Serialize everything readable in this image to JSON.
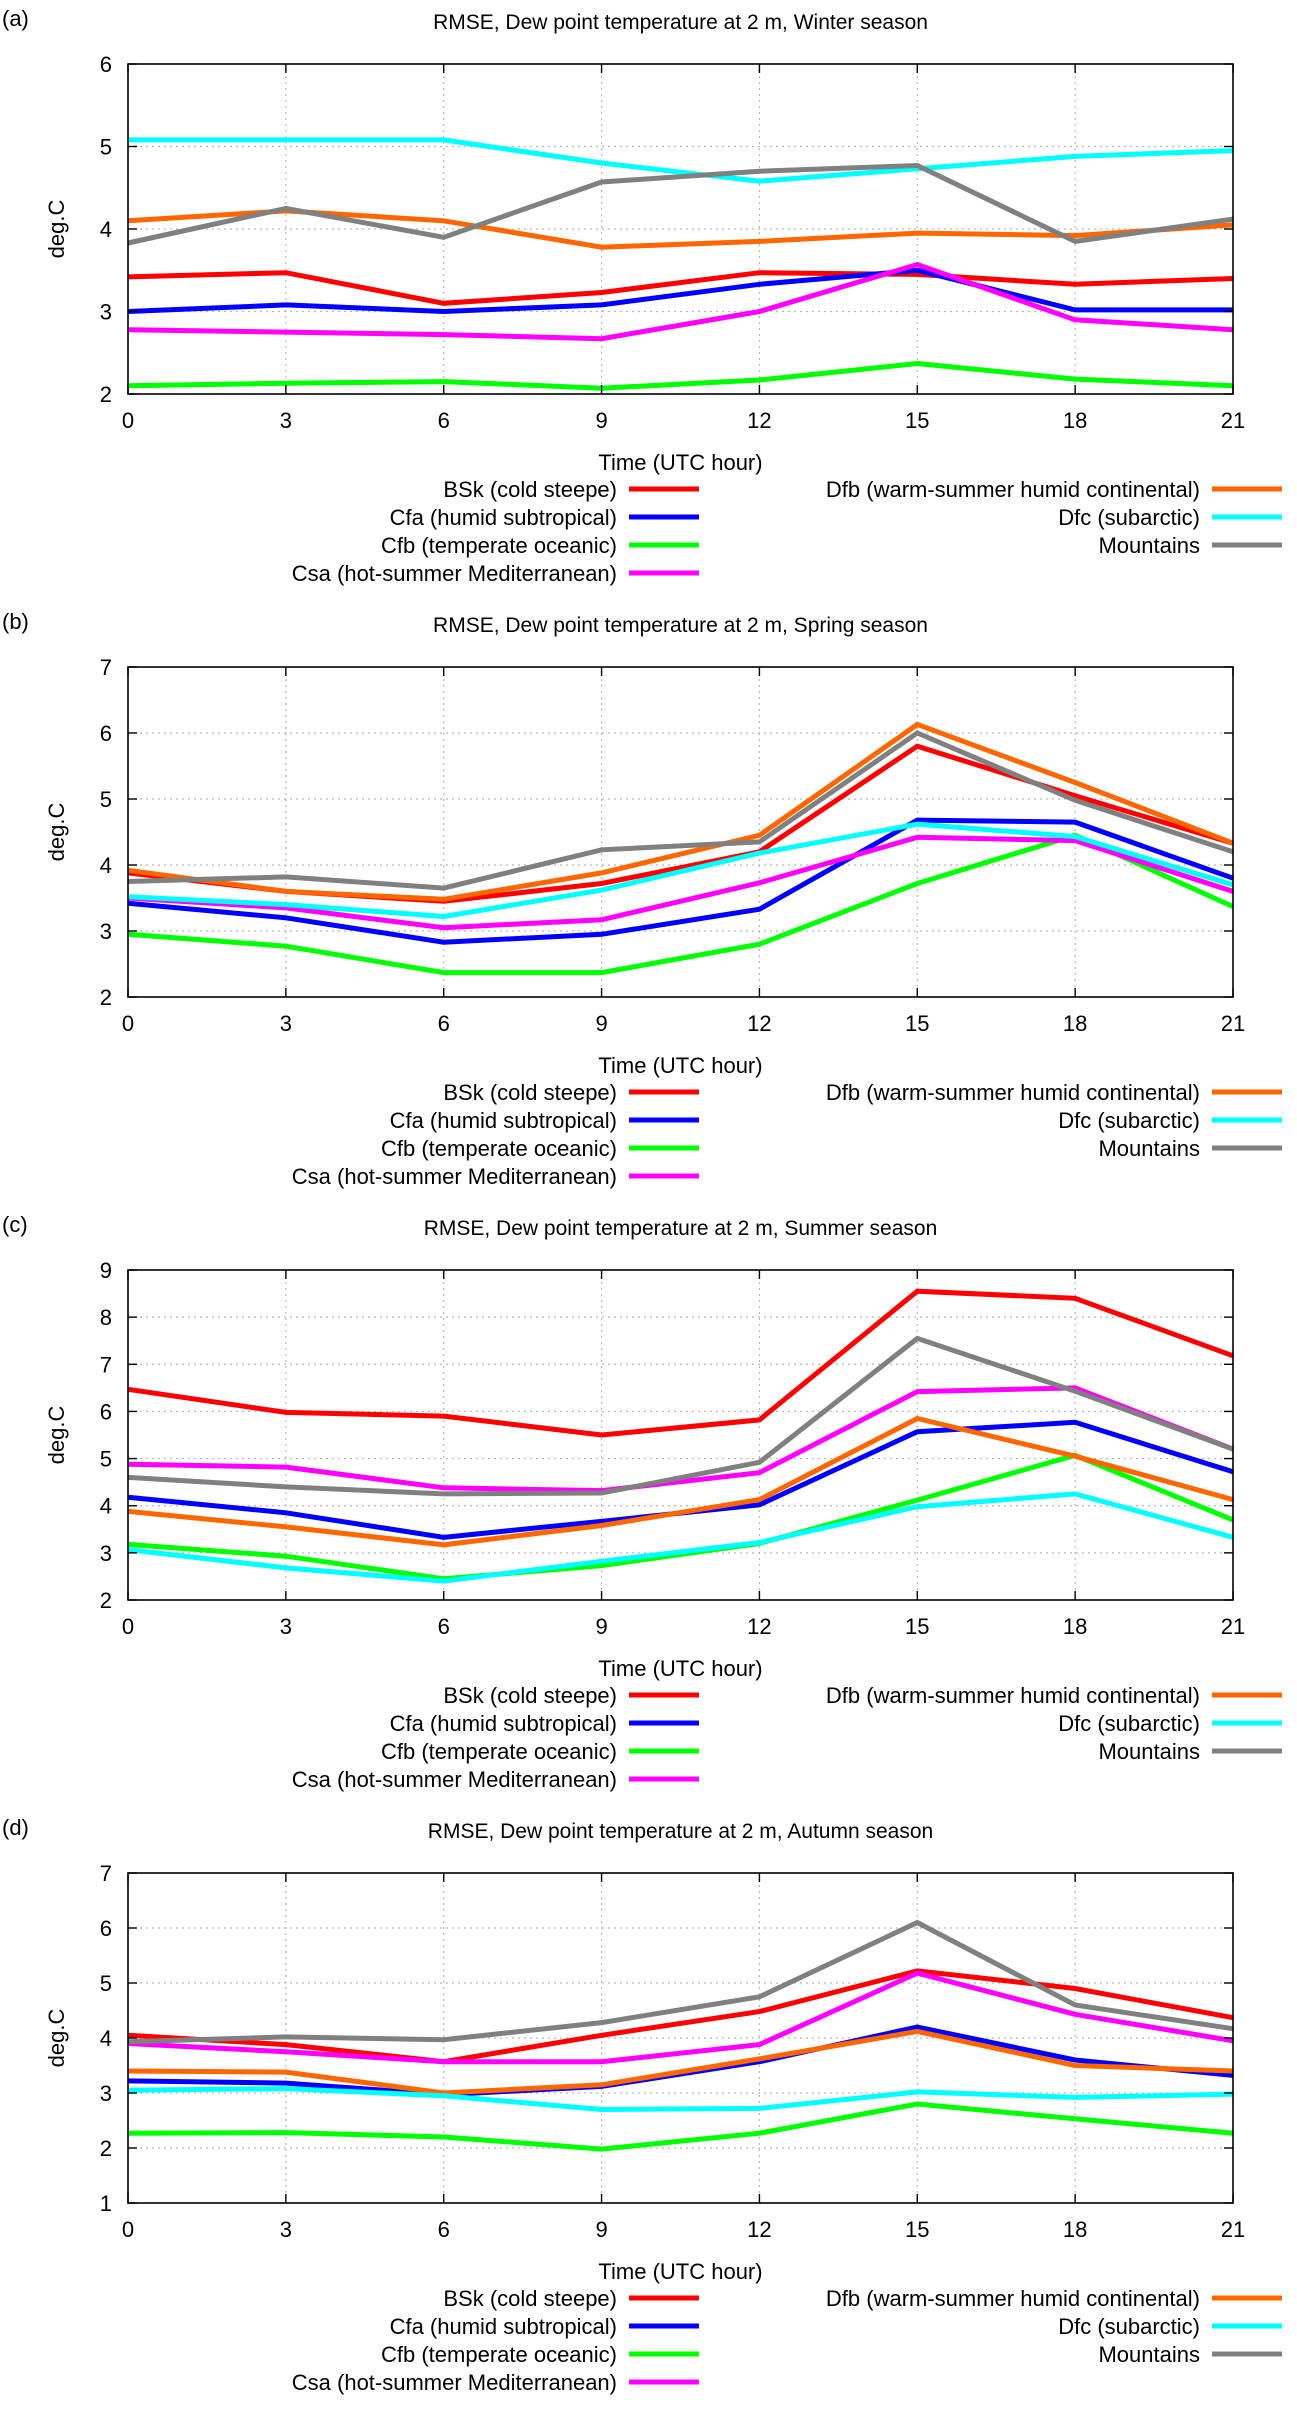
{
  "legend": {
    "left": [
      {
        "label": "BSk (cold steepe)",
        "color": "#ff0000"
      },
      {
        "label": "Cfa (humid subtropical)",
        "color": "#0000ff"
      },
      {
        "label": "Cfb (temperate oceanic)",
        "color": "#00ff00"
      },
      {
        "label": "Csa (hot-summer Mediterranean)",
        "color": "#ff00ff"
      }
    ],
    "right": [
      {
        "label": "Dfb (warm-summer humid continental)",
        "color": "#ff6600"
      },
      {
        "label": "Dfc (subarctic)",
        "color": "#00ffff"
      },
      {
        "label": "Mountains",
        "color": "#808080"
      }
    ]
  },
  "chart_data": [
    {
      "panel_label": "(a)",
      "type": "line",
      "title": "RMSE, Dew point temperature at 2 m, Winter season",
      "xlabel": "Time (UTC hour)",
      "ylabel": "deg.C",
      "x": [
        0,
        3,
        6,
        9,
        12,
        15,
        18,
        21
      ],
      "xlim": [
        0,
        21
      ],
      "ylim": [
        2,
        6
      ],
      "yticks": [
        2,
        3,
        4,
        5,
        6
      ],
      "grid": true,
      "series": [
        {
          "name": "BSk (cold steepe)",
          "color": "#ff0000",
          "values": [
            3.42,
            3.47,
            3.1,
            3.23,
            3.47,
            3.45,
            3.33,
            3.4
          ]
        },
        {
          "name": "Cfa (humid subtropical)",
          "color": "#0000ff",
          "values": [
            3.0,
            3.08,
            3.0,
            3.08,
            3.33,
            3.5,
            3.02,
            3.02
          ]
        },
        {
          "name": "Cfb (temperate oceanic)",
          "color": "#00ff00",
          "values": [
            2.1,
            2.13,
            2.15,
            2.07,
            2.17,
            2.37,
            2.18,
            2.1
          ]
        },
        {
          "name": "Csa (hot-summer Mediterranean)",
          "color": "#ff00ff",
          "values": [
            2.78,
            2.75,
            2.72,
            2.67,
            3.0,
            3.57,
            2.9,
            2.78
          ]
        },
        {
          "name": "Dfb (warm-summer humid continental)",
          "color": "#ff6600",
          "values": [
            4.1,
            4.22,
            4.1,
            3.78,
            3.85,
            3.95,
            3.92,
            4.05
          ]
        },
        {
          "name": "Dfc (subarctic)",
          "color": "#00ffff",
          "values": [
            5.08,
            5.08,
            5.08,
            4.8,
            4.58,
            4.73,
            4.88,
            4.95
          ]
        },
        {
          "name": "Mountains",
          "color": "#808080",
          "values": [
            3.83,
            4.25,
            3.9,
            4.57,
            4.7,
            4.77,
            3.85,
            4.12
          ]
        }
      ]
    },
    {
      "panel_label": "(b)",
      "type": "line",
      "title": "RMSE, Dew point temperature at 2 m, Spring season",
      "xlabel": "Time (UTC hour)",
      "ylabel": "deg.C",
      "x": [
        0,
        3,
        6,
        9,
        12,
        15,
        18,
        21
      ],
      "xlim": [
        0,
        21
      ],
      "ylim": [
        2,
        7
      ],
      "yticks": [
        2,
        3,
        4,
        5,
        6,
        7
      ],
      "grid": true,
      "series": [
        {
          "name": "BSk (cold steepe)",
          "color": "#ff0000",
          "values": [
            3.88,
            3.6,
            3.45,
            3.72,
            4.2,
            5.8,
            5.05,
            4.33
          ]
        },
        {
          "name": "Cfa (humid subtropical)",
          "color": "#0000ff",
          "values": [
            3.42,
            3.2,
            2.83,
            2.95,
            3.33,
            4.68,
            4.65,
            3.8
          ]
        },
        {
          "name": "Cfb (temperate oceanic)",
          "color": "#00ff00",
          "values": [
            2.95,
            2.77,
            2.37,
            2.37,
            2.8,
            3.72,
            4.45,
            3.37
          ]
        },
        {
          "name": "Csa (hot-summer Mediterranean)",
          "color": "#ff00ff",
          "values": [
            3.5,
            3.35,
            3.05,
            3.17,
            3.73,
            4.42,
            4.37,
            3.6
          ]
        },
        {
          "name": "Dfb (warm-summer humid continental)",
          "color": "#ff6600",
          "values": [
            3.92,
            3.6,
            3.48,
            3.88,
            4.45,
            6.13,
            5.25,
            4.33
          ]
        },
        {
          "name": "Dfc (subarctic)",
          "color": "#00ffff",
          "values": [
            3.52,
            3.4,
            3.22,
            3.62,
            4.18,
            4.62,
            4.43,
            3.7
          ]
        },
        {
          "name": "Mountains",
          "color": "#808080",
          "values": [
            3.75,
            3.82,
            3.65,
            4.23,
            4.35,
            6.0,
            4.98,
            4.2
          ]
        }
      ]
    },
    {
      "panel_label": "(c)",
      "type": "line",
      "title": "RMSE, Dew point temperature at 2 m, Summer season",
      "xlabel": "Time (UTC hour)",
      "ylabel": "deg.C",
      "x": [
        0,
        3,
        6,
        9,
        12,
        15,
        18,
        21
      ],
      "xlim": [
        0,
        21
      ],
      "ylim": [
        2,
        9
      ],
      "yticks": [
        2,
        3,
        4,
        5,
        6,
        7,
        8,
        9
      ],
      "grid": true,
      "series": [
        {
          "name": "BSk (cold steepe)",
          "color": "#ff0000",
          "values": [
            6.47,
            5.98,
            5.9,
            5.5,
            5.82,
            8.55,
            8.4,
            7.18
          ]
        },
        {
          "name": "Cfa (humid subtropical)",
          "color": "#0000ff",
          "values": [
            4.18,
            3.85,
            3.33,
            3.67,
            4.02,
            5.57,
            5.77,
            4.72
          ]
        },
        {
          "name": "Cfb (temperate oceanic)",
          "color": "#00ff00",
          "values": [
            3.18,
            2.93,
            2.45,
            2.73,
            3.2,
            4.12,
            5.07,
            3.7
          ]
        },
        {
          "name": "Csa (hot-summer Mediterranean)",
          "color": "#ff00ff",
          "values": [
            4.88,
            4.82,
            4.38,
            4.32,
            4.7,
            6.42,
            6.5,
            5.2
          ]
        },
        {
          "name": "Dfb (warm-summer humid continental)",
          "color": "#ff6600",
          "values": [
            3.88,
            3.55,
            3.17,
            3.58,
            4.13,
            5.85,
            5.05,
            4.13
          ]
        },
        {
          "name": "Dfc (subarctic)",
          "color": "#00ffff",
          "values": [
            3.07,
            2.68,
            2.4,
            2.82,
            3.22,
            3.98,
            4.25,
            3.33
          ]
        },
        {
          "name": "Mountains",
          "color": "#808080",
          "values": [
            4.6,
            4.4,
            4.25,
            4.27,
            4.92,
            7.55,
            6.43,
            5.2
          ]
        }
      ]
    },
    {
      "panel_label": "(d)",
      "type": "line",
      "title": "RMSE, Dew point temperature at 2 m, Autumn season",
      "xlabel": "Time (UTC hour)",
      "ylabel": "deg.C",
      "x": [
        0,
        3,
        6,
        9,
        12,
        15,
        18,
        21
      ],
      "xlim": [
        0,
        21
      ],
      "ylim": [
        1,
        7
      ],
      "yticks": [
        1,
        2,
        3,
        4,
        5,
        6,
        7
      ],
      "grid": true,
      "series": [
        {
          "name": "BSk (cold steepe)",
          "color": "#ff0000",
          "values": [
            4.05,
            3.88,
            3.57,
            4.05,
            4.48,
            5.22,
            4.9,
            4.37
          ]
        },
        {
          "name": "Cfa (humid subtropical)",
          "color": "#0000ff",
          "values": [
            3.22,
            3.18,
            2.97,
            3.12,
            3.57,
            4.2,
            3.6,
            3.32
          ]
        },
        {
          "name": "Cfb (temperate oceanic)",
          "color": "#00ff00",
          "values": [
            2.27,
            2.28,
            2.2,
            1.98,
            2.27,
            2.8,
            2.53,
            2.27
          ]
        },
        {
          "name": "Csa (hot-summer Mediterranean)",
          "color": "#ff00ff",
          "values": [
            3.9,
            3.75,
            3.57,
            3.57,
            3.88,
            5.18,
            4.43,
            3.95
          ]
        },
        {
          "name": "Dfb (warm-summer humid continental)",
          "color": "#ff6600",
          "values": [
            3.4,
            3.38,
            3.0,
            3.15,
            3.62,
            4.12,
            3.5,
            3.4
          ]
        },
        {
          "name": "Dfc (subarctic)",
          "color": "#00ffff",
          "values": [
            3.05,
            3.08,
            2.95,
            2.7,
            2.72,
            3.02,
            2.92,
            2.98
          ]
        },
        {
          "name": "Mountains",
          "color": "#808080",
          "values": [
            3.93,
            4.02,
            3.97,
            4.28,
            4.75,
            6.1,
            4.6,
            4.17
          ]
        }
      ]
    }
  ]
}
